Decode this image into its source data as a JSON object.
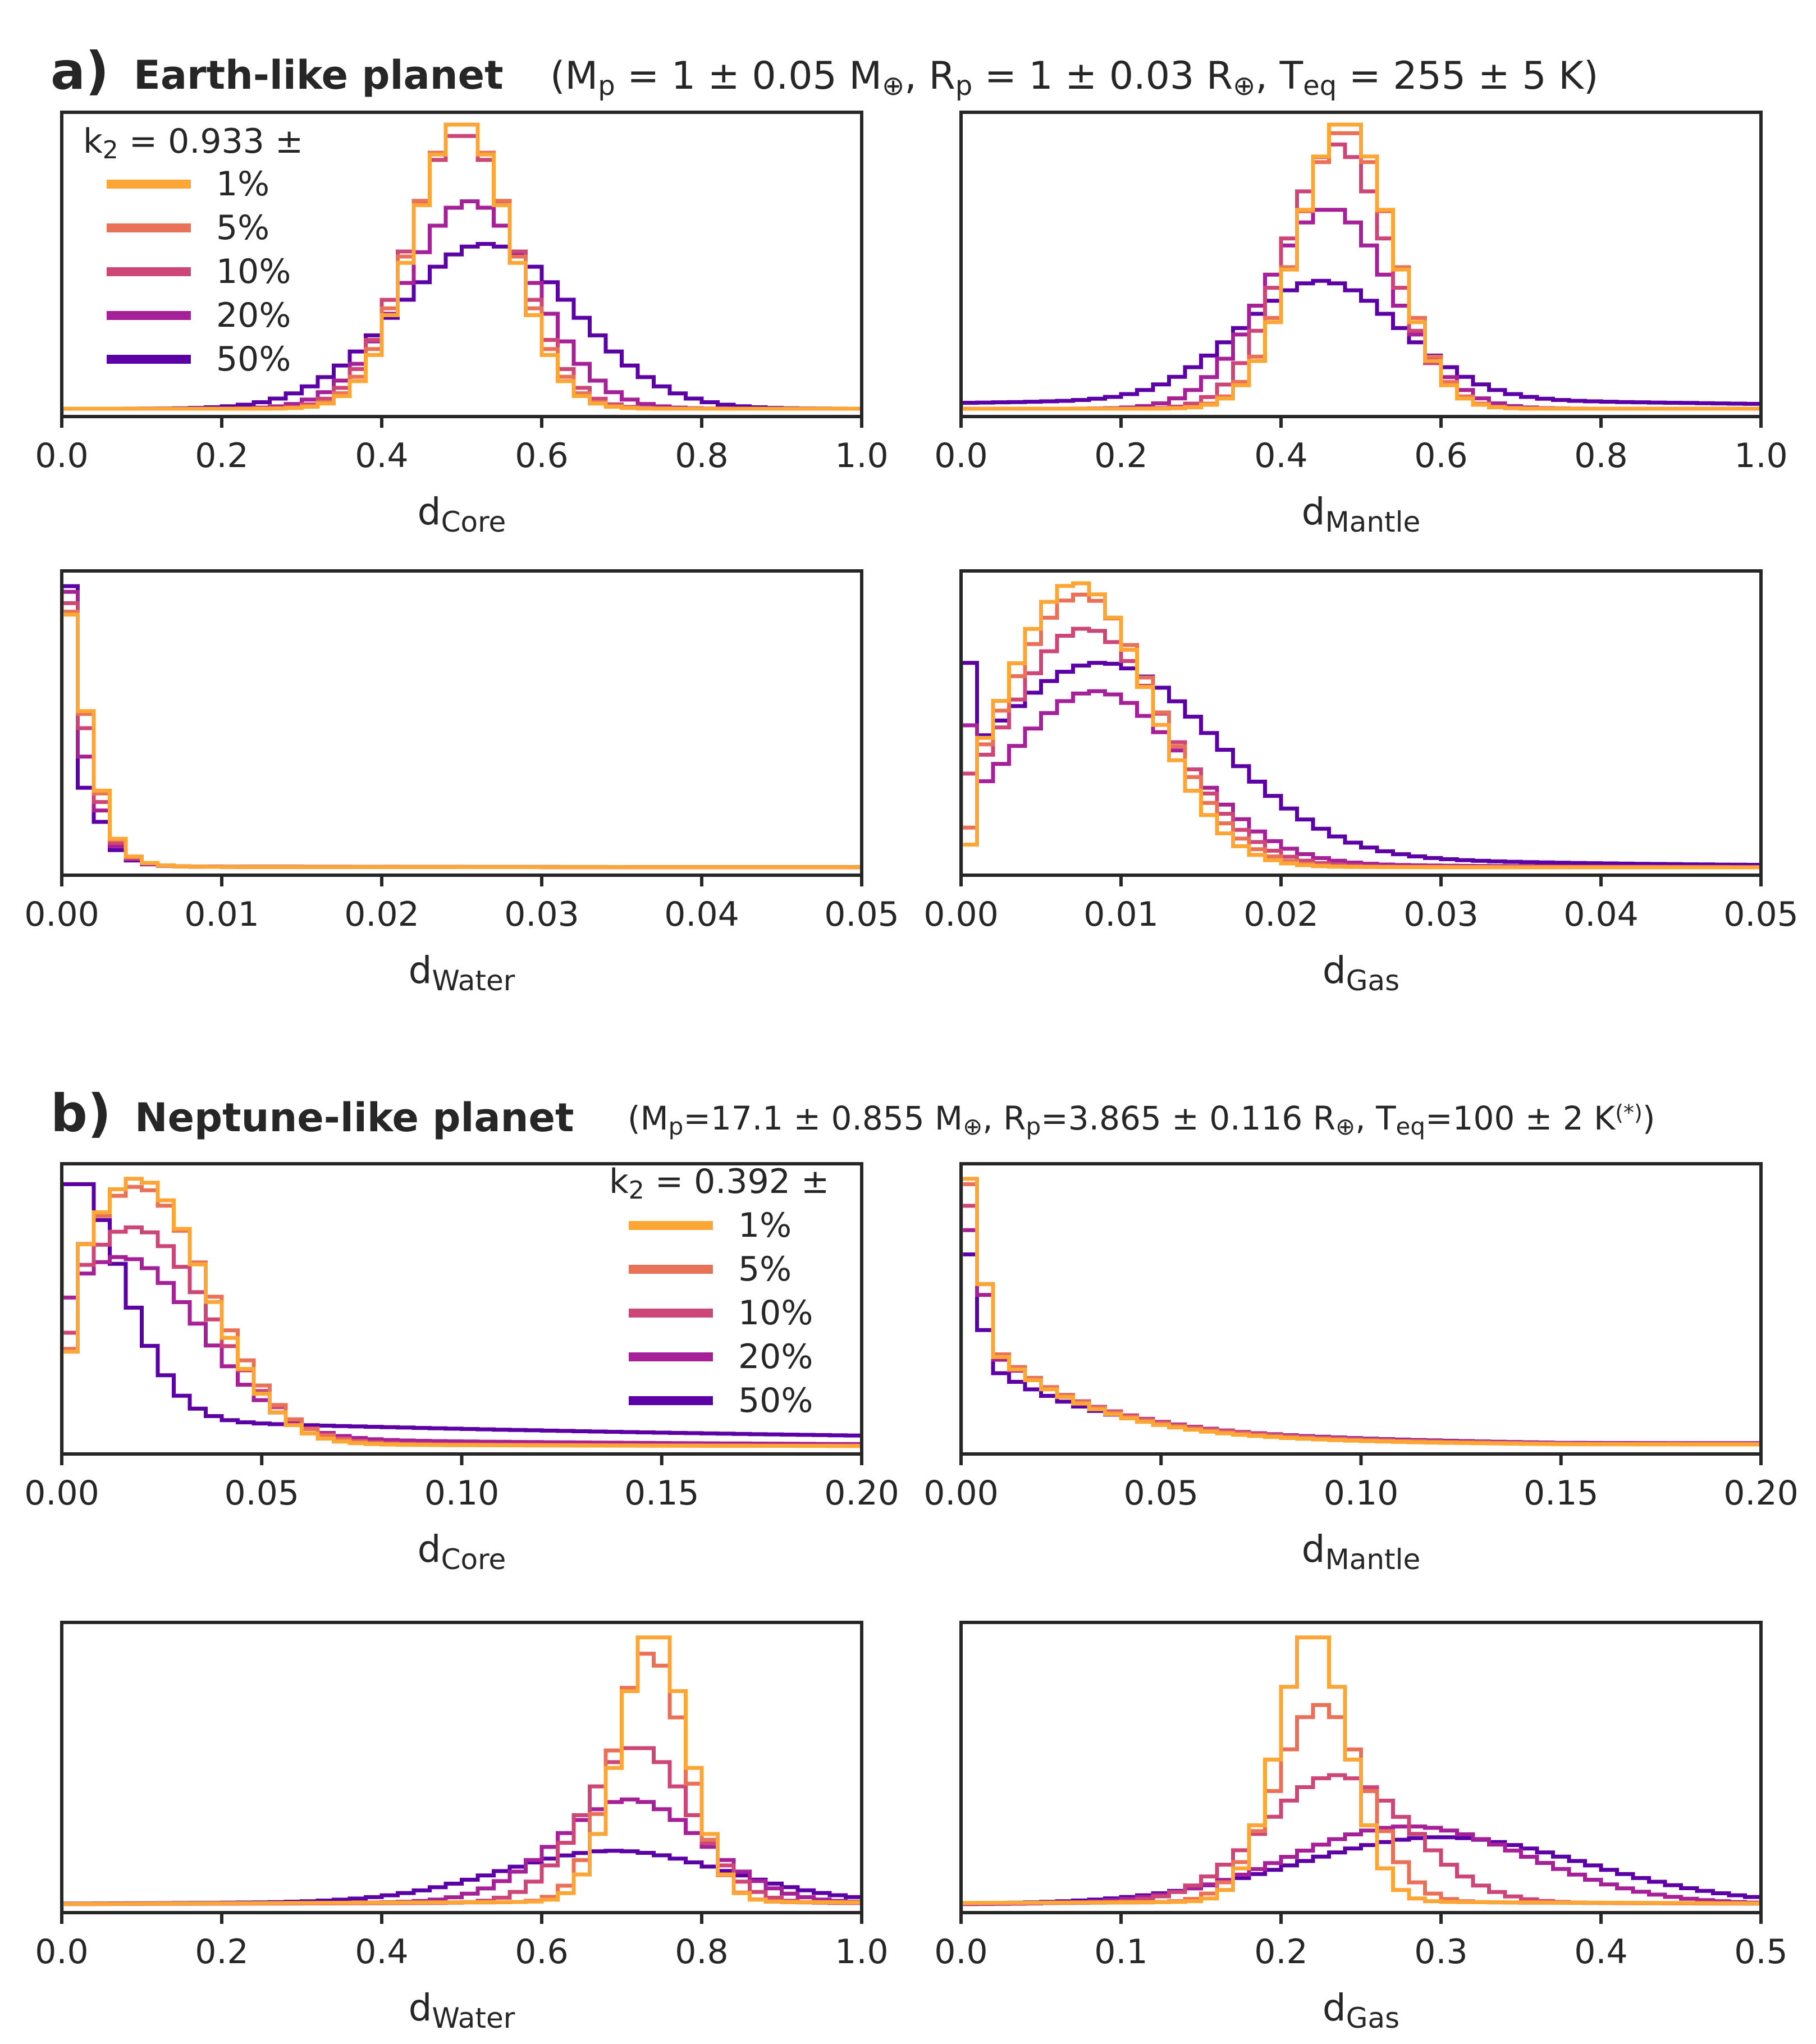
{
  "colors": {
    "1%": "#fca636",
    "5%": "#e97158",
    "10%": "#cc4778",
    "20%": "#a62098",
    "50%": "#5c01a6",
    "axis": "#262626"
  },
  "figure": {
    "section_a": {
      "tag": "a)",
      "title": "Earth-like planet",
      "params": {
        "open": "(M",
        "mp_sub": "p",
        "mp_val": " = 1 ± 0.05 M",
        "mp_unit_sub": "⊕",
        "sep1": ", R",
        "rp_sub": "p",
        "rp_val": " = 1 ± 0.03 R",
        "rp_unit_sub": "⊕",
        "sep2": ", T",
        "teq_sub": "eq",
        "teq_val": " = 255 ± 5 K)"
      },
      "legend": {
        "title_k": "k",
        "title_sub": "2",
        "title_rest": " = 0.933 ±",
        "entries": [
          "1%",
          "5%",
          "10%",
          "20%",
          "50%"
        ]
      }
    },
    "section_b": {
      "tag": "b)",
      "title": "Neptune-like planet",
      "params": {
        "open": "(M",
        "mp_sub": "p",
        "mp_val": "=17.1 ± 0.855 M",
        "mp_unit_sub": "⊕",
        "sep1": ", R",
        "rp_sub": "p",
        "rp_val": "=3.865 ± 0.116 R",
        "rp_unit_sub": "⊕",
        "sep2": ", T",
        "teq_sub": "eq",
        "teq_val": "=100 ± 2 K",
        "note_sup": "(*)",
        "close": ")"
      },
      "legend": {
        "title_k": "k",
        "title_sub": "2",
        "title_rest": " = 0.392 ±",
        "entries": [
          "1%",
          "5%",
          "10%",
          "20%",
          "50%"
        ]
      }
    }
  },
  "chart_data": [
    {
      "id": "a_core",
      "type": "histogram (step)",
      "section": "a",
      "xlabel_main": "d",
      "xlabel_sub": "Core",
      "xlim": [
        0,
        1
      ],
      "xticks": [
        "0.0",
        "0.2",
        "0.4",
        "0.6",
        "0.8",
        "1.0"
      ],
      "yticks": "none",
      "bins": 50,
      "series": [
        {
          "name": "1%",
          "peak": 0.5,
          "height": 1.0,
          "w": [
            [
              "g",
              0.5,
              0.06,
              1
            ]
          ]
        },
        {
          "name": "5%",
          "peak": 0.5,
          "height": 1.0,
          "w": [
            [
              "g",
              0.5,
              0.062,
              1
            ]
          ]
        },
        {
          "name": "10%",
          "peak": 0.5,
          "height": 0.96,
          "w": [
            [
              "g",
              0.5,
              0.066,
              1
            ]
          ]
        },
        {
          "name": "20%",
          "peak": 0.51,
          "height": 0.73,
          "w": [
            [
              "g",
              0.51,
              0.08,
              1
            ]
          ]
        },
        {
          "name": "50%",
          "peak": 0.54,
          "height": 0.58,
          "w": [
            [
              "g",
              0.53,
              0.11,
              1
            ]
          ]
        }
      ]
    },
    {
      "id": "a_mantle",
      "type": "histogram (step)",
      "section": "a",
      "xlabel_main": "d",
      "xlabel_sub": "Mantle",
      "xlim": [
        0,
        1
      ],
      "xticks": [
        "0.0",
        "0.2",
        "0.4",
        "0.6",
        "0.8",
        "1.0"
      ],
      "yticks": "none",
      "bins": 50,
      "series": [
        {
          "name": "1%",
          "peak": 0.49,
          "height": 1.0,
          "w": [
            [
              "g",
              0.48,
              0.058,
              1
            ]
          ]
        },
        {
          "name": "5%",
          "peak": 0.48,
          "height": 0.97,
          "w": [
            [
              "g",
              0.48,
              0.06,
              1
            ]
          ]
        },
        {
          "name": "10%",
          "peak": 0.48,
          "height": 0.93,
          "w": [
            [
              "g",
              0.47,
              0.064,
              1
            ]
          ]
        },
        {
          "name": "20%",
          "peak": 0.47,
          "height": 0.7,
          "w": [
            [
              "g",
              0.46,
              0.078,
              1
            ]
          ]
        },
        {
          "name": "50%",
          "peak": 0.45,
          "height": 0.45,
          "w": [
            [
              "g",
              0.45,
              0.1,
              1
            ],
            [
              "f",
              0.09
            ]
          ]
        }
      ]
    },
    {
      "id": "a_water",
      "type": "histogram (step)",
      "section": "a",
      "xlabel_main": "d",
      "xlabel_sub": "Water",
      "xlim": [
        0,
        0.05
      ],
      "xticks": [
        "0.00",
        "0.01",
        "0.02",
        "0.03",
        "0.04",
        "0.05"
      ],
      "yticks": "none",
      "bins": 50,
      "series": [
        {
          "name": "1%",
          "first_bins": [
            0.89,
            0.55,
            0.27
          ],
          "tail": 0.002
        },
        {
          "name": "5%",
          "first_bins": [
            0.9,
            0.54,
            0.26
          ],
          "tail": 0.002
        },
        {
          "name": "10%",
          "first_bins": [
            0.93,
            0.49,
            0.23
          ],
          "tail": 0.002
        },
        {
          "name": "20%",
          "first_bins": [
            0.97,
            0.39,
            0.2
          ],
          "tail": 0.002
        },
        {
          "name": "50%",
          "first_bins": [
            0.99,
            0.28,
            0.16
          ],
          "tail": 0.003
        }
      ]
    },
    {
      "id": "a_gas",
      "type": "histogram (step)",
      "section": "a",
      "xlabel_main": "d",
      "xlabel_sub": "Gas",
      "xlim": [
        0,
        0.05
      ],
      "xticks": [
        "0.00",
        "0.01",
        "0.02",
        "0.03",
        "0.04",
        "0.05"
      ],
      "yticks": "none",
      "bins": 50,
      "series": [
        {
          "name": "1%",
          "peak": 0.007,
          "height": 1.0,
          "w": [
            [
              "g",
              0.0072,
              0.0045,
              1
            ],
            [
              "t",
              0.01,
              0.0095
            ]
          ],
          "first": 0.08
        },
        {
          "name": "5%",
          "peak": 0.007,
          "height": 0.96,
          "w": [
            [
              "g",
              0.0075,
              0.0047,
              1
            ],
            [
              "t",
              0.013,
              0.01
            ]
          ],
          "first": 0.14
        },
        {
          "name": "10%",
          "peak": 0.008,
          "height": 0.84,
          "w": [
            [
              "g",
              0.0078,
              0.005,
              1
            ],
            [
              "t",
              0.03,
              0.012
            ]
          ],
          "first": 0.33
        },
        {
          "name": "20%",
          "peak": 0.009,
          "height": 0.62,
          "w": [
            [
              "g",
              0.0085,
              0.0055,
              1
            ],
            [
              "t",
              0.07,
              0.015
            ]
          ],
          "first": 0.5
        },
        {
          "name": "50%",
          "peak": 0.0,
          "height": 0.72,
          "w": [
            [
              "g",
              0.009,
              0.007,
              0.75
            ],
            [
              "t",
              0.12,
              0.02
            ]
          ],
          "first": 0.72
        }
      ]
    },
    {
      "id": "b_core",
      "type": "histogram (step)",
      "section": "b",
      "xlabel_main": "d",
      "xlabel_sub": "Core",
      "xlim": [
        0,
        0.2
      ],
      "xticks": [
        "0.00",
        "0.05",
        "0.10",
        "0.15",
        "0.20"
      ],
      "yticks": "none",
      "bins": 50,
      "series": [
        {
          "name": "1%",
          "peak": 0.02,
          "height": 0.99,
          "w": [
            [
              "g",
              0.019,
              0.017,
              1
            ],
            [
              "t",
              0.02,
              0.06
            ]
          ],
          "first": 0.35
        },
        {
          "name": "5%",
          "peak": 0.02,
          "height": 0.96,
          "w": [
            [
              "g",
              0.019,
              0.018,
              1
            ],
            [
              "t",
              0.025,
              0.06
            ]
          ],
          "first": 0.36
        },
        {
          "name": "10%",
          "peak": 0.02,
          "height": 0.81,
          "w": [
            [
              "g",
              0.018,
              0.019,
              1
            ],
            [
              "t",
              0.035,
              0.07
            ]
          ],
          "first": 0.42
        },
        {
          "name": "20%",
          "peak": 0.015,
          "height": 0.7,
          "w": [
            [
              "g",
              0.015,
              0.02,
              1
            ],
            [
              "t",
              0.06,
              0.12
            ]
          ],
          "first": 0.55
        },
        {
          "name": "50%",
          "peak": 0.0,
          "height": 0.97,
          "w": [
            [
              "g",
              0.0,
              0.014,
              0.9
            ],
            [
              "t",
              0.1,
              0.2
            ]
          ],
          "first": 0.97
        }
      ]
    },
    {
      "id": "b_mantle",
      "type": "histogram (step)",
      "section": "b",
      "xlabel_main": "d",
      "xlabel_sub": "Mantle",
      "xlim": [
        0,
        0.2
      ],
      "xticks": [
        "0.00",
        "0.05",
        "0.10",
        "0.15",
        "0.20"
      ],
      "yticks": "none",
      "bins": 50,
      "series": [
        {
          "name": "1%",
          "first_bins": [
            0.99,
            0.6,
            0.33
          ],
          "decay": 0.025,
          "tail": 0.02
        },
        {
          "name": "5%",
          "first_bins": [
            0.97,
            0.6,
            0.34
          ],
          "decay": 0.025,
          "tail": 0.025
        },
        {
          "name": "10%",
          "first_bins": [
            0.89,
            0.6,
            0.33
          ],
          "decay": 0.026,
          "tail": 0.03
        },
        {
          "name": "20%",
          "first_bins": [
            0.8,
            0.56,
            0.32
          ],
          "decay": 0.027,
          "tail": 0.03
        },
        {
          "name": "50%",
          "first_bins": [
            0.71,
            0.43,
            0.27
          ],
          "decay": 0.028,
          "tail": 0.035
        }
      ]
    },
    {
      "id": "b_water",
      "type": "histogram (step)",
      "section": "b",
      "xlabel_main": "d",
      "xlabel_sub": "Water",
      "xlim": [
        0,
        1
      ],
      "xticks": [
        "0.0",
        "0.2",
        "0.4",
        "0.6",
        "0.8",
        "1.0"
      ],
      "yticks": "none",
      "bins": 50,
      "series": [
        {
          "name": "1%",
          "peak": 0.74,
          "height": 0.99,
          "w": [
            [
              "g",
              0.74,
              0.042,
              1
            ],
            [
              "f",
              0.012
            ]
          ]
        },
        {
          "name": "5%",
          "peak": 0.73,
          "height": 0.93,
          "w": [
            [
              "g",
              0.735,
              0.045,
              1
            ],
            [
              "f",
              0.012
            ]
          ]
        },
        {
          "name": "10%",
          "peak": 0.72,
          "height": 0.58,
          "w": [
            [
              "g",
              0.72,
              0.065,
              1
            ],
            [
              "f",
              0.015
            ]
          ]
        },
        {
          "name": "20%",
          "peak": 0.72,
          "height": 0.39,
          "w": [
            [
              "g",
              0.71,
              0.09,
              1
            ],
            [
              "f",
              0.03
            ]
          ]
        },
        {
          "name": "50%",
          "peak": 0.7,
          "height": 0.2,
          "w": [
            [
              "g",
              0.69,
              0.14,
              1
            ],
            [
              "f",
              0.075
            ]
          ]
        }
      ]
    },
    {
      "id": "b_gas",
      "type": "histogram (step)",
      "section": "b",
      "xlabel_main": "d",
      "xlabel_sub": "Gas",
      "xlim": [
        0,
        0.5
      ],
      "xticks": [
        "0.0",
        "0.1",
        "0.2",
        "0.3",
        "0.4",
        "0.5"
      ],
      "yticks": "none",
      "bins": 50,
      "series": [
        {
          "name": "1%",
          "peak": 0.22,
          "height": 0.99,
          "w": [
            [
              "g",
              0.22,
              0.022,
              1
            ],
            [
              "f",
              0.012
            ]
          ]
        },
        {
          "name": "5%",
          "peak": 0.22,
          "height": 0.74,
          "w": [
            [
              "g",
              0.225,
              0.028,
              1
            ],
            [
              "f",
              0.015
            ]
          ]
        },
        {
          "name": "10%",
          "peak": 0.23,
          "height": 0.48,
          "w": [
            [
              "g",
              0.235,
              0.045,
              1
            ],
            [
              "f",
              0.02
            ]
          ]
        },
        {
          "name": "20%",
          "peak": 0.29,
          "height": 0.29,
          "w": [
            [
              "g",
              0.28,
              0.075,
              1
            ],
            [
              "f",
              0.02
            ]
          ]
        },
        {
          "name": "50%",
          "peak": 0.3,
          "height": 0.25,
          "w": [
            [
              "g",
              0.3,
              0.09,
              1
            ],
            [
              "f",
              0.04
            ]
          ]
        }
      ]
    }
  ]
}
